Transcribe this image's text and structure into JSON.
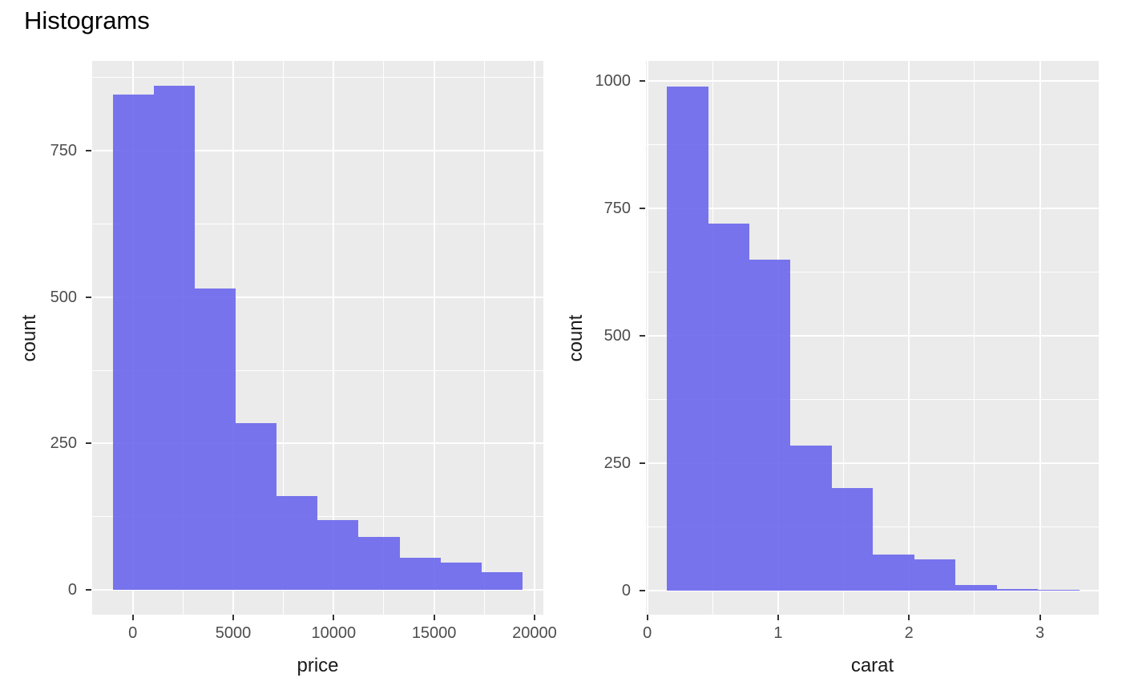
{
  "title": "Histograms",
  "colors": {
    "background": "#FFFFFF",
    "panel": "#EBEBEB",
    "grid": "#FFFFFF",
    "bar_fill": "#6A66EC",
    "bar_opacity": 0.9,
    "tick_label": "#4D4D4D",
    "axis_title": "#1A1A1A",
    "tick_mark": "#333333"
  },
  "chart_data": [
    {
      "type": "bar",
      "variant": "histogram",
      "title": "",
      "xlabel": "price",
      "ylabel": "count",
      "bin_start": -1000,
      "bin_width": 2040,
      "counts": [
        845,
        860,
        515,
        285,
        160,
        120,
        90,
        55,
        47,
        30
      ],
      "x_ticks": [
        0,
        5000,
        10000,
        15000,
        20000
      ],
      "x_tick_labels": [
        "0",
        "5000",
        "10000",
        "15000",
        "20000"
      ],
      "x_minor_ticks": [
        2500,
        7500,
        12500,
        17500
      ],
      "y_ticks": [
        0,
        250,
        500,
        750
      ],
      "y_tick_labels": [
        "0",
        "250",
        "500",
        "750"
      ],
      "y_minor_ticks": [
        125,
        375,
        625,
        875
      ],
      "xlim": [
        -2020,
        20440
      ],
      "ylim": [
        -42,
        903
      ],
      "grid": true,
      "legend": false
    },
    {
      "type": "bar",
      "variant": "histogram",
      "title": "",
      "xlabel": "carat",
      "ylabel": "count",
      "bin_start": 0.15,
      "bin_width": 0.315,
      "counts": [
        990,
        720,
        650,
        285,
        200,
        70,
        60,
        10,
        2,
        1
      ],
      "x_ticks": [
        0,
        1,
        2,
        3
      ],
      "x_tick_labels": [
        "0",
        "1",
        "2",
        "3"
      ],
      "x_minor_ticks": [
        0.5,
        1.5,
        2.5
      ],
      "y_ticks": [
        0,
        250,
        500,
        750,
        1000
      ],
      "y_tick_labels": [
        "0",
        "250",
        "500",
        "750",
        "1000"
      ],
      "y_minor_ticks": [
        125,
        375,
        625,
        875
      ],
      "xlim": [
        -0.01,
        3.45
      ],
      "ylim": [
        -48,
        1040
      ],
      "grid": true,
      "legend": false
    }
  ]
}
